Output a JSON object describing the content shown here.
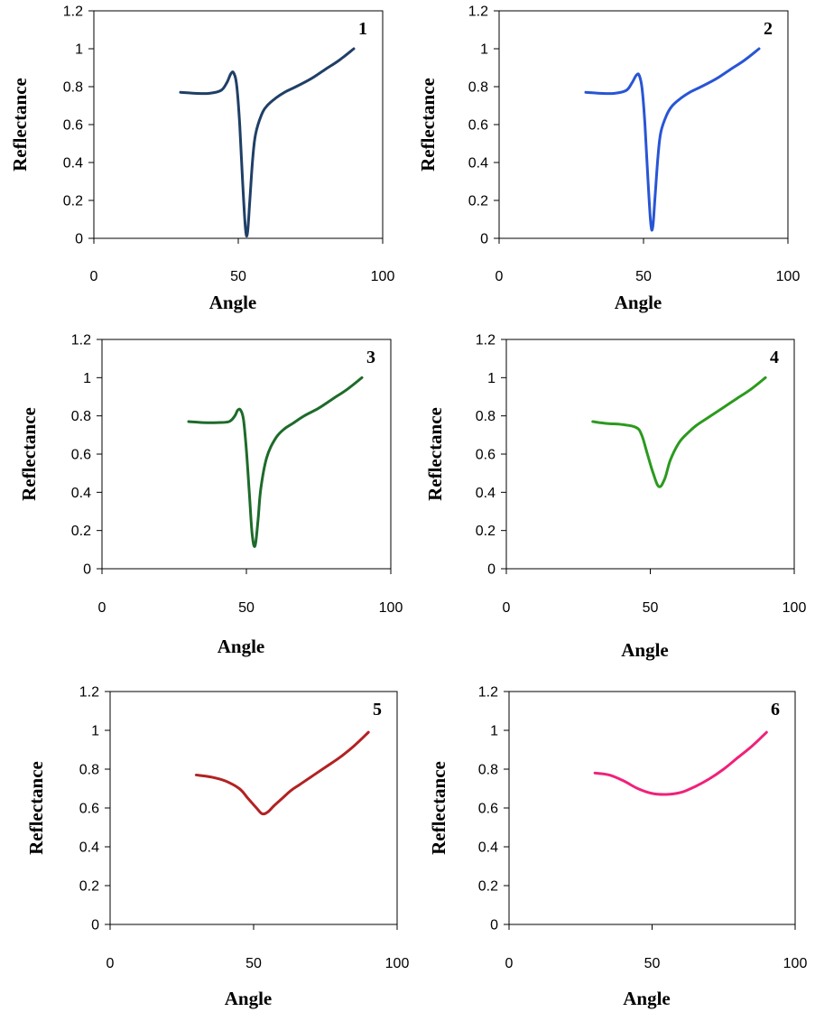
{
  "chart_data": [
    {
      "type": "line",
      "panel_label": "1",
      "xlabel": "Angle",
      "ylabel": "Reflectance",
      "xlim": [
        0,
        100
      ],
      "ylim": [
        0,
        1.2
      ],
      "xticks": [
        "0",
        "50",
        "100"
      ],
      "yticks": [
        "0",
        "0.2",
        "0.4",
        "0.6",
        "0.8",
        "1",
        "1.2"
      ],
      "grid": false,
      "color": "#1f3f66",
      "series": [
        {
          "x": [
            30,
            35,
            40,
            44,
            46,
            47.5,
            48.5,
            49.5,
            50.5,
            51.5,
            52.5,
            53.2,
            54,
            55,
            56,
            58,
            60,
            63,
            66,
            70,
            75,
            80,
            85,
            90
          ],
          "y": [
            0.77,
            0.765,
            0.765,
            0.78,
            0.82,
            0.87,
            0.87,
            0.8,
            0.6,
            0.3,
            0.05,
            0.03,
            0.2,
            0.42,
            0.55,
            0.65,
            0.7,
            0.74,
            0.77,
            0.8,
            0.84,
            0.89,
            0.94,
            1.0
          ]
        }
      ]
    },
    {
      "type": "line",
      "panel_label": "2",
      "xlabel": "Angle",
      "ylabel": "Reflectance",
      "xlim": [
        0,
        100
      ],
      "ylim": [
        0,
        1.2
      ],
      "xticks": [
        "0",
        "50",
        "100"
      ],
      "yticks": [
        "0",
        "0.2",
        "0.4",
        "0.6",
        "0.8",
        "1",
        "1.2"
      ],
      "grid": false,
      "color": "#2855d6",
      "series": [
        {
          "x": [
            30,
            35,
            40,
            44,
            46,
            47.5,
            48.5,
            49.5,
            50.5,
            51.5,
            52.5,
            53.2,
            54,
            55,
            56,
            58,
            60,
            63,
            66,
            70,
            75,
            80,
            85,
            90
          ],
          "y": [
            0.77,
            0.765,
            0.765,
            0.78,
            0.82,
            0.86,
            0.86,
            0.79,
            0.6,
            0.32,
            0.08,
            0.06,
            0.22,
            0.43,
            0.56,
            0.65,
            0.7,
            0.74,
            0.77,
            0.8,
            0.84,
            0.89,
            0.94,
            1.0
          ]
        }
      ]
    },
    {
      "type": "line",
      "panel_label": "3",
      "xlabel": "Angle",
      "ylabel": "Reflectance",
      "xlim": [
        0,
        100
      ],
      "ylim": [
        0,
        1.2
      ],
      "xticks": [
        "0",
        "50",
        "100"
      ],
      "yticks": [
        "0",
        "0.2",
        "0.4",
        "0.6",
        "0.8",
        "1",
        "1.2"
      ],
      "grid": false,
      "color": "#1d6b2a",
      "series": [
        {
          "x": [
            30,
            35,
            40,
            44,
            46,
            47,
            48,
            49,
            50,
            51,
            52,
            53,
            54,
            55,
            57,
            60,
            63,
            66,
            70,
            75,
            80,
            85,
            90
          ],
          "y": [
            0.77,
            0.765,
            0.765,
            0.77,
            0.8,
            0.83,
            0.83,
            0.78,
            0.62,
            0.4,
            0.18,
            0.12,
            0.25,
            0.42,
            0.58,
            0.68,
            0.73,
            0.76,
            0.8,
            0.84,
            0.89,
            0.94,
            1.0
          ]
        }
      ]
    },
    {
      "type": "line",
      "panel_label": "4",
      "xlabel": "Angle",
      "ylabel": "Reflectance",
      "xlim": [
        0,
        100
      ],
      "ylim": [
        0,
        1.2
      ],
      "xticks": [
        "0",
        "50",
        "100"
      ],
      "yticks": [
        "0",
        "0.2",
        "0.4",
        "0.6",
        "0.8",
        "1",
        "1.2"
      ],
      "grid": false,
      "color": "#2b9a1e",
      "series": [
        {
          "x": [
            30,
            35,
            40,
            45,
            47,
            49,
            51,
            53,
            55,
            57,
            60,
            63,
            66,
            70,
            75,
            80,
            85,
            90
          ],
          "y": [
            0.77,
            0.76,
            0.755,
            0.74,
            0.7,
            0.6,
            0.5,
            0.43,
            0.47,
            0.57,
            0.66,
            0.71,
            0.75,
            0.79,
            0.84,
            0.89,
            0.94,
            1.0
          ]
        }
      ]
    },
    {
      "type": "line",
      "panel_label": "5",
      "xlabel": "Angle",
      "ylabel": "Reflectance",
      "xlim": [
        0,
        100
      ],
      "ylim": [
        0,
        1.2
      ],
      "xticks": [
        "0",
        "50",
        "100"
      ],
      "yticks": [
        "0",
        "0.2",
        "0.4",
        "0.6",
        "0.8",
        "1",
        "1.2"
      ],
      "grid": false,
      "color": "#b22222",
      "series": [
        {
          "x": [
            30,
            35,
            40,
            45,
            48,
            51,
            53,
            55,
            57,
            60,
            63,
            66,
            70,
            75,
            80,
            85,
            90
          ],
          "y": [
            0.77,
            0.76,
            0.74,
            0.7,
            0.65,
            0.6,
            0.57,
            0.58,
            0.61,
            0.65,
            0.69,
            0.72,
            0.76,
            0.81,
            0.86,
            0.92,
            0.99
          ]
        }
      ]
    },
    {
      "type": "line",
      "panel_label": "6",
      "xlabel": "Angle",
      "ylabel": "Reflectance",
      "xlim": [
        0,
        100
      ],
      "ylim": [
        0,
        1.2
      ],
      "xticks": [
        "0",
        "50",
        "100"
      ],
      "yticks": [
        "0",
        "0.2",
        "0.4",
        "0.6",
        "0.8",
        "1",
        "1.2"
      ],
      "grid": false,
      "color": "#f0217a",
      "series": [
        {
          "x": [
            30,
            35,
            40,
            45,
            50,
            55,
            60,
            65,
            70,
            75,
            80,
            85,
            90
          ],
          "y": [
            0.78,
            0.77,
            0.74,
            0.7,
            0.675,
            0.67,
            0.68,
            0.71,
            0.75,
            0.8,
            0.86,
            0.92,
            0.99
          ]
        }
      ]
    }
  ]
}
